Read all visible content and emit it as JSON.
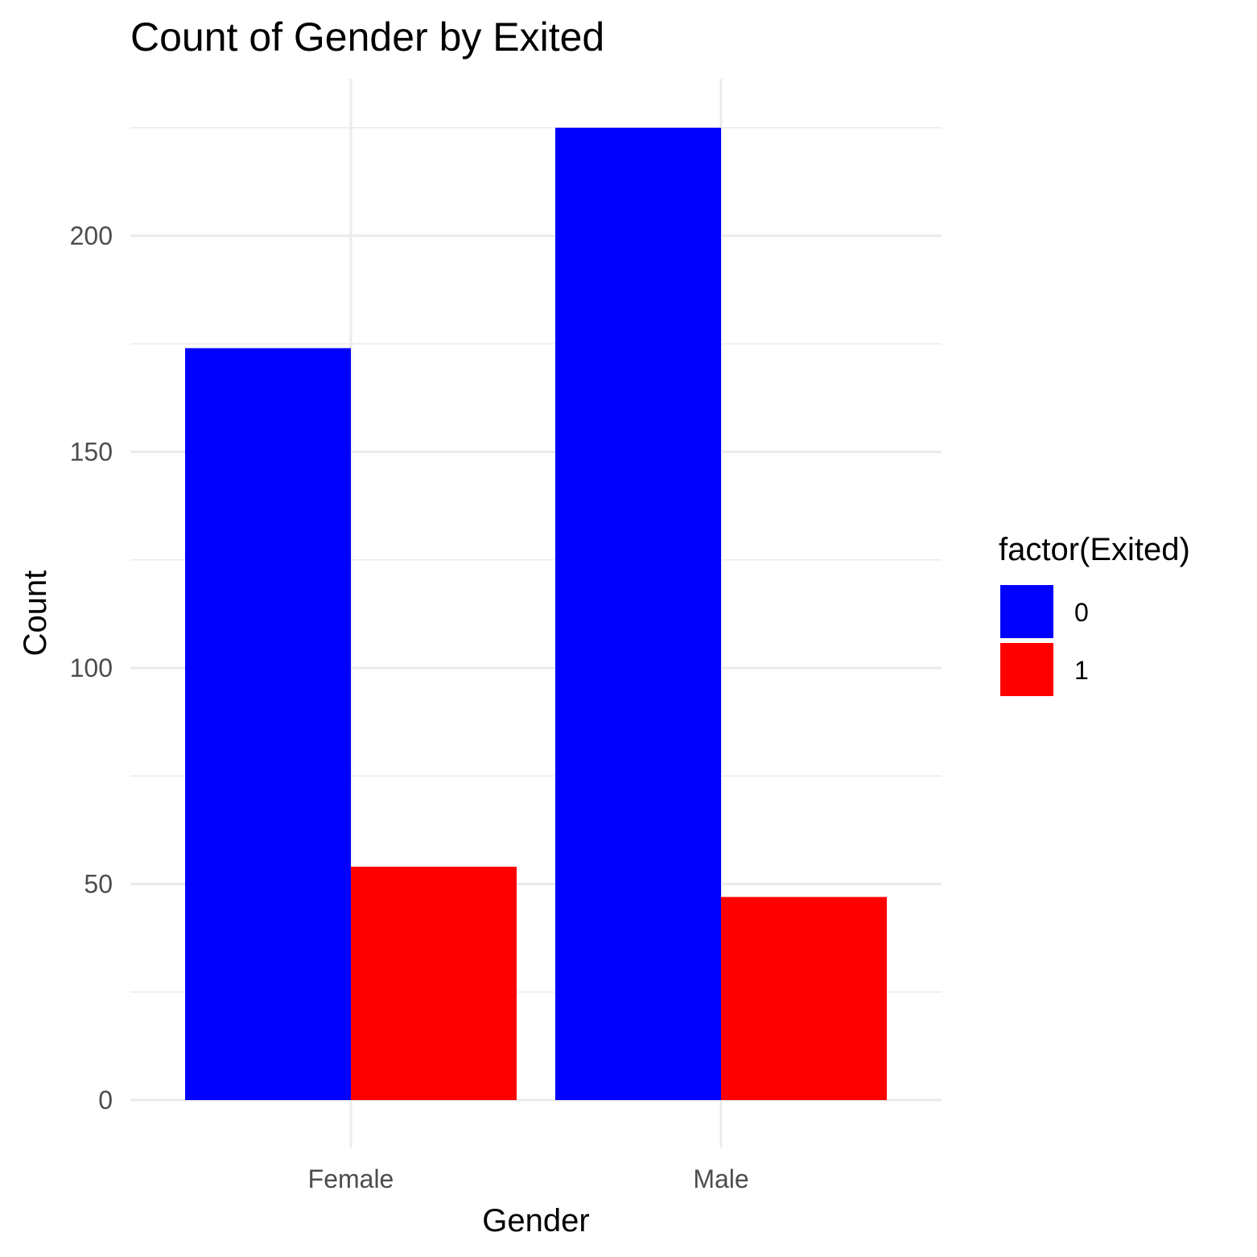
{
  "chart_data": {
    "type": "bar",
    "title": "Count of Gender by Exited",
    "xlabel": "Gender",
    "ylabel": "Count",
    "categories": [
      "Female",
      "Male"
    ],
    "series": [
      {
        "name": "0",
        "values": [
          174,
          225
        ],
        "color": "#0000ff"
      },
      {
        "name": "1",
        "values": [
          54,
          47
        ],
        "color": "#ff0000"
      }
    ],
    "y_ticks": [
      0,
      50,
      100,
      150,
      200
    ],
    "y_tick_labels": [
      "0",
      "50",
      "100",
      "150",
      "200"
    ],
    "ylim": [
      0,
      225
    ],
    "grid": true,
    "legend": {
      "title": "factor(Exited)",
      "placement": "right"
    }
  }
}
